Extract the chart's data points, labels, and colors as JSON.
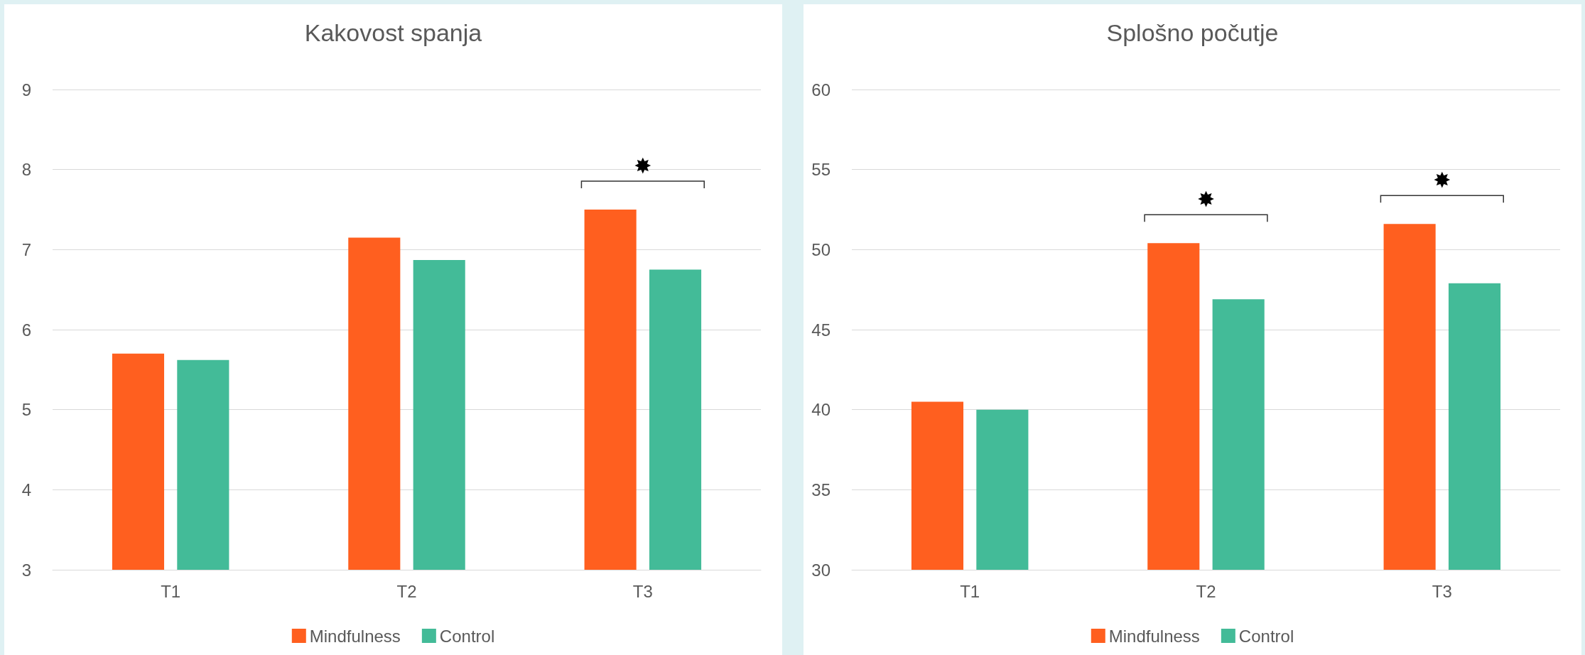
{
  "chart_data": [
    {
      "type": "bar",
      "title": "Kakovost spanja",
      "categories": [
        "T1",
        "T2",
        "T3"
      ],
      "series": [
        {
          "name": "Mindfulness",
          "color": "#ff5f1f",
          "values": [
            5.7,
            7.15,
            7.5
          ]
        },
        {
          "name": "Control",
          "color": "#43bb98",
          "values": [
            5.62,
            6.87,
            6.75
          ]
        }
      ],
      "ylim": [
        3,
        9
      ],
      "yticks": [
        3,
        4,
        5,
        6,
        7,
        8,
        9
      ],
      "grid": "y",
      "legend": "bottom",
      "annotations": [
        "✸"
      ]
    },
    {
      "type": "bar",
      "title": "Splošno počutje",
      "categories": [
        "T1",
        "T2",
        "T3"
      ],
      "series": [
        {
          "name": "Mindfulness",
          "color": "#ff5f1f",
          "values": [
            40.5,
            50.4,
            51.6
          ]
        },
        {
          "name": "Control",
          "color": "#43bb98",
          "values": [
            40.0,
            46.9,
            47.9
          ]
        }
      ],
      "ylim": [
        30,
        60
      ],
      "yticks": [
        30,
        35,
        40,
        45,
        50,
        55,
        60
      ],
      "grid": "y",
      "legend": "bottom",
      "annotations": [
        "✸",
        "✸"
      ]
    }
  ]
}
